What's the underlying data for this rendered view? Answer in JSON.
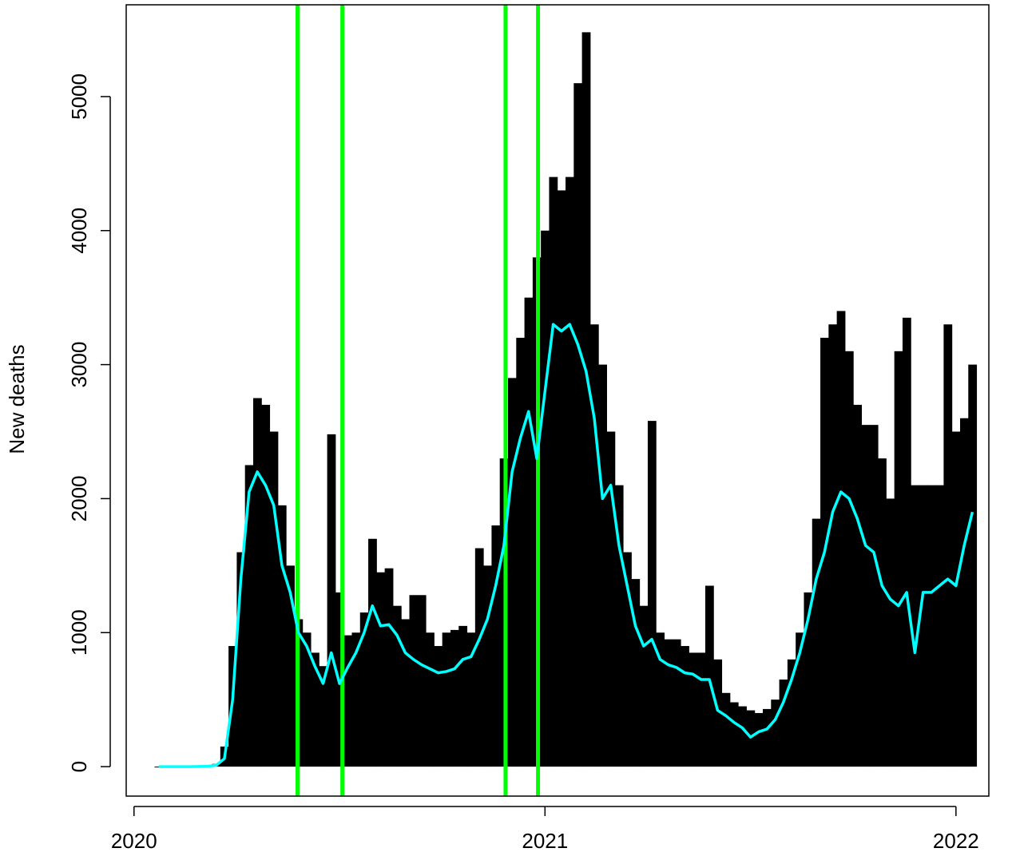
{
  "chart_data": {
    "type": "bar",
    "y_label": "New deaths",
    "x": [
      2020.06,
      2020.08,
      2020.1,
      2020.12,
      2020.14,
      2020.16,
      2020.18,
      2020.2,
      2020.22,
      2020.24,
      2020.26,
      2020.28,
      2020.3,
      2020.32,
      2020.34,
      2020.36,
      2020.38,
      2020.4,
      2020.42,
      2020.44,
      2020.46,
      2020.48,
      2020.5,
      2020.52,
      2020.54,
      2020.56,
      2020.58,
      2020.6,
      2020.62,
      2020.64,
      2020.66,
      2020.68,
      2020.7,
      2020.72,
      2020.74,
      2020.76,
      2020.78,
      2020.8,
      2020.82,
      2020.84,
      2020.86,
      2020.88,
      2020.9,
      2020.92,
      2020.94,
      2020.96,
      2020.98,
      2021,
      2021.02,
      2021.04,
      2021.06,
      2021.08,
      2021.1,
      2021.12,
      2021.14,
      2021.16,
      2021.18,
      2021.2,
      2021.22,
      2021.24,
      2021.26,
      2021.28,
      2021.3,
      2021.32,
      2021.34,
      2021.36,
      2021.38,
      2021.4,
      2021.42,
      2021.44,
      2021.46,
      2021.48,
      2021.5,
      2021.52,
      2021.54,
      2021.56,
      2021.58,
      2021.6,
      2021.62,
      2021.64,
      2021.66,
      2021.68,
      2021.7,
      2021.72,
      2021.74,
      2021.76,
      2021.78,
      2021.8,
      2021.82,
      2021.84,
      2021.86,
      2021.88,
      2021.9,
      2021.92,
      2021.94,
      2021.96,
      2021.98,
      2022,
      2022.02,
      2022.04
    ],
    "series": [
      {
        "type": "bar",
        "color": "#000000",
        "values": [
          0,
          0,
          0,
          0,
          0,
          2,
          5,
          20,
          150,
          900,
          1600,
          2250,
          2750,
          2700,
          2500,
          1950,
          1500,
          1100,
          1000,
          850,
          750,
          2480,
          1300,
          980,
          1000,
          1150,
          1700,
          1450,
          1480,
          1200,
          1100,
          1280,
          1280,
          1000,
          900,
          1000,
          1020,
          1050,
          1000,
          1630,
          1500,
          1800,
          2300,
          2900,
          3200,
          3500,
          3800,
          4000,
          4400,
          4300,
          4400,
          5100,
          5480,
          3300,
          3000,
          2500,
          2100,
          1600,
          1400,
          1200,
          2580,
          1000,
          950,
          950,
          900,
          850,
          850,
          1350,
          800,
          550,
          480,
          450,
          420,
          400,
          430,
          500,
          650,
          800,
          1000,
          1300,
          1850,
          3200,
          3300,
          3400,
          3100,
          2700,
          2550,
          2550,
          2300,
          2000,
          3100,
          3350,
          2100,
          2100,
          2100,
          2100,
          3300,
          2500,
          2600,
          3000
        ]
      },
      {
        "type": "line",
        "color": "#00ffff",
        "values": [
          0,
          0,
          0,
          0,
          0,
          1,
          3,
          10,
          60,
          500,
          1400,
          2050,
          2200,
          2100,
          1950,
          1500,
          1300,
          1000,
          900,
          750,
          620,
          850,
          620,
          740,
          850,
          1000,
          1200,
          1050,
          1060,
          980,
          850,
          800,
          760,
          730,
          700,
          710,
          730,
          800,
          820,
          950,
          1100,
          1350,
          1650,
          2200,
          2450,
          2650,
          2300,
          2800,
          3300,
          3250,
          3300,
          3150,
          2950,
          2600,
          2000,
          2100,
          1650,
          1350,
          1050,
          900,
          950,
          800,
          760,
          740,
          700,
          690,
          650,
          650,
          420,
          380,
          330,
          290,
          220,
          260,
          280,
          350,
          480,
          650,
          850,
          1100,
          1400,
          1600,
          1900,
          2050,
          2000,
          1850,
          1650,
          1600,
          1350,
          1250,
          1200,
          1300,
          850,
          1300,
          1300,
          1350,
          1400,
          1350,
          1650,
          1900
        ]
      }
    ],
    "vlines": {
      "color": "#00ff00",
      "x": [
        2020.398,
        2020.507,
        2020.904,
        2020.983
      ]
    },
    "xlim": [
      2019.981,
      2022.08
    ],
    "xticks": [
      2020,
      2021,
      2022
    ],
    "ylim": [
      -220,
      5685
    ],
    "yticks": [
      0,
      1000,
      2000,
      3000,
      4000,
      5000
    ]
  }
}
